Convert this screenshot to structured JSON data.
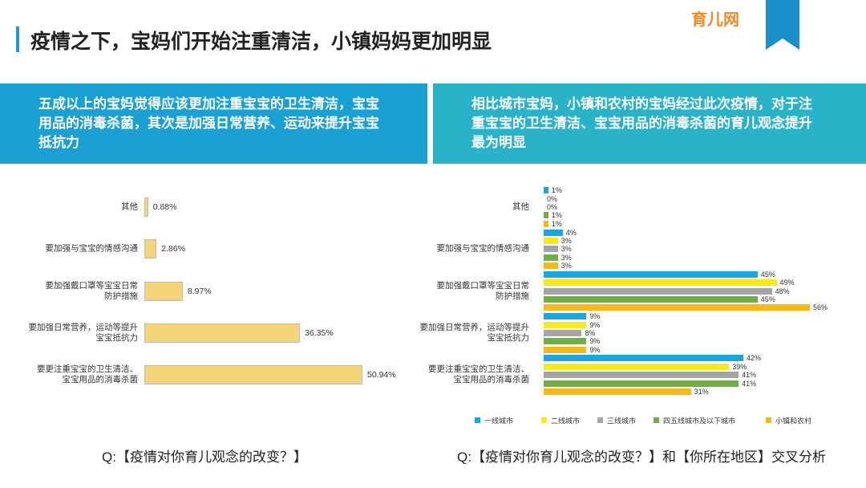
{
  "header": {
    "title": "疫情之下，宝妈们开始注重清洁，小镇妈妈更加明显"
  },
  "logo": {
    "name": "育儿网"
  },
  "panels": [
    "五成以上的宝妈觉得应该更加注重宝宝的卫生清洁，宝宝用品的消毒杀菌，其次是加强日常营养、运动来提升宝宝抵抗力",
    "相比城市宝妈，小镇和农村的宝妈经过此次疫情，对于注重宝宝的卫生清洁、宝宝用品的消毒杀菌的育儿观念提升最为明显"
  ],
  "questions": [
    "Q:【疫情对你育儿观念的改变？】",
    "Q:【疫情对你育儿观念的改变？】和【你所在地区】交叉分析"
  ],
  "chart_data": [
    {
      "type": "bar",
      "orientation": "horizontal",
      "color": "#f5d57a",
      "categories": [
        "其他",
        "要加强与宝宝的情感沟通",
        "要加强戴口罩等宝宝日常\n防护措施",
        "要加强日常营养，运动等提升\n宝宝抵抗力",
        "要更注重宝宝的卫生清洁、\n宝宝用品的消毒杀菌"
      ],
      "values": [
        0.88,
        2.86,
        8.97,
        36.35,
        50.94
      ],
      "value_labels": [
        "0.88%",
        "2.86%",
        "8.97%",
        "36.35%",
        "50.94%"
      ]
    },
    {
      "type": "bar",
      "orientation": "horizontal",
      "legend": "bottom",
      "categories": [
        "其他",
        "要加强与宝宝的情感沟通",
        "要加强戴口罩等宝宝日常\n防护措施",
        "要加强日常营养，运动等提升\n宝宝抵抗力",
        "要更注重宝宝的卫生清洁、\n宝宝用品的消毒杀菌"
      ],
      "series": [
        {
          "name": "一线城市",
          "color": "#1ba6df",
          "values": [
            1,
            4,
            45,
            9,
            42
          ],
          "value_labels": [
            "1%",
            "4%",
            "45%",
            "9%",
            "42%"
          ]
        },
        {
          "name": "二线城市",
          "color": "#f7ea1c",
          "values": [
            0,
            3,
            49,
            9,
            39
          ],
          "value_labels": [
            "0%",
            "3%",
            "49%",
            "9%",
            "39%"
          ]
        },
        {
          "name": "三线城市",
          "color": "#a5a5a5",
          "values": [
            0,
            3,
            48,
            8,
            41
          ],
          "value_labels": [
            "0%",
            "3%",
            "48%",
            "8%",
            "41%"
          ]
        },
        {
          "name": "四五线城市及以下城市",
          "color": "#71ae48",
          "values": [
            1,
            3,
            45,
            9,
            41
          ],
          "value_labels": [
            "1%",
            "3%",
            "45%",
            "9%",
            "41%"
          ]
        },
        {
          "name": "小镇和农村",
          "color": "#f6b91a",
          "values": [
            1,
            3,
            56,
            9,
            31
          ],
          "value_labels": [
            "1%",
            "3%",
            "56%",
            "9%",
            "31%"
          ]
        }
      ]
    }
  ]
}
